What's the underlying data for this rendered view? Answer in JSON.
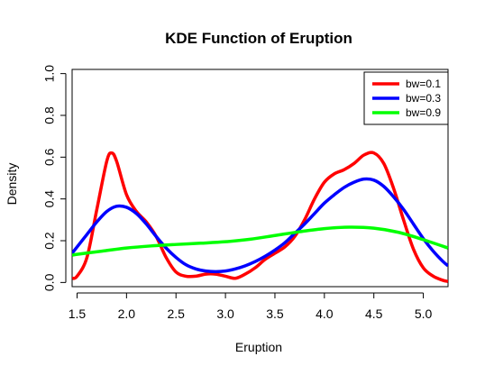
{
  "chart_data": {
    "type": "line",
    "title": "KDE Function of Eruption",
    "xlabel": "Eruption",
    "ylabel": "Density",
    "xlim": [
      1.45,
      5.25
    ],
    "ylim": [
      -0.02,
      1.02
    ],
    "x_ticks": [
      1.5,
      2.0,
      2.5,
      3.0,
      3.5,
      4.0,
      4.5,
      5.0
    ],
    "x_tick_labels": [
      "1.5",
      "2.0",
      "2.5",
      "3.0",
      "3.5",
      "4.0",
      "4.5",
      "5.0"
    ],
    "y_ticks": [
      0.0,
      0.2,
      0.4,
      0.6,
      0.8,
      1.0
    ],
    "y_tick_labels": [
      "0.0",
      "0.2",
      "0.4",
      "0.6",
      "0.8",
      "1.0"
    ],
    "grid": false,
    "legend_position": "top-right",
    "series": [
      {
        "name": "bw=0.1",
        "color": "#ff0000",
        "x": [
          1.45,
          1.5,
          1.6,
          1.7,
          1.8,
          1.85,
          1.9,
          2.0,
          2.1,
          2.2,
          2.3,
          2.4,
          2.5,
          2.6,
          2.7,
          2.8,
          2.9,
          3.0,
          3.1,
          3.2,
          3.3,
          3.4,
          3.5,
          3.6,
          3.7,
          3.8,
          3.9,
          4.0,
          4.1,
          4.2,
          4.3,
          4.4,
          4.5,
          4.6,
          4.7,
          4.8,
          4.9,
          5.0,
          5.1,
          5.2,
          5.25
        ],
        "values": [
          0.02,
          0.03,
          0.12,
          0.35,
          0.58,
          0.62,
          0.58,
          0.42,
          0.34,
          0.29,
          0.22,
          0.12,
          0.05,
          0.03,
          0.03,
          0.04,
          0.04,
          0.03,
          0.02,
          0.04,
          0.07,
          0.11,
          0.14,
          0.17,
          0.22,
          0.3,
          0.4,
          0.48,
          0.52,
          0.54,
          0.57,
          0.61,
          0.62,
          0.57,
          0.45,
          0.3,
          0.16,
          0.07,
          0.03,
          0.01,
          0.005
        ]
      },
      {
        "name": "bw=0.3",
        "color": "#0000ff",
        "x": [
          1.45,
          1.5,
          1.6,
          1.7,
          1.8,
          1.9,
          2.0,
          2.1,
          2.2,
          2.3,
          2.4,
          2.5,
          2.6,
          2.7,
          2.8,
          2.9,
          3.0,
          3.1,
          3.2,
          3.3,
          3.4,
          3.5,
          3.6,
          3.7,
          3.8,
          3.9,
          4.0,
          4.1,
          4.2,
          4.3,
          4.4,
          4.5,
          4.6,
          4.7,
          4.8,
          4.9,
          5.0,
          5.1,
          5.2,
          5.25
        ],
        "values": [
          0.14,
          0.17,
          0.23,
          0.29,
          0.34,
          0.365,
          0.36,
          0.33,
          0.28,
          0.22,
          0.165,
          0.12,
          0.085,
          0.065,
          0.055,
          0.052,
          0.055,
          0.065,
          0.08,
          0.1,
          0.125,
          0.155,
          0.19,
          0.235,
          0.28,
          0.33,
          0.38,
          0.42,
          0.455,
          0.48,
          0.495,
          0.49,
          0.46,
          0.41,
          0.35,
          0.28,
          0.21,
          0.15,
          0.1,
          0.08
        ]
      },
      {
        "name": "bw=0.9",
        "color": "#00ff00",
        "x": [
          1.45,
          1.5,
          1.75,
          2.0,
          2.25,
          2.5,
          2.75,
          3.0,
          3.25,
          3.5,
          3.75,
          4.0,
          4.25,
          4.5,
          4.75,
          5.0,
          5.25
        ],
        "values": [
          0.13,
          0.135,
          0.15,
          0.165,
          0.175,
          0.182,
          0.188,
          0.195,
          0.207,
          0.225,
          0.243,
          0.258,
          0.265,
          0.26,
          0.24,
          0.205,
          0.165
        ]
      }
    ]
  }
}
